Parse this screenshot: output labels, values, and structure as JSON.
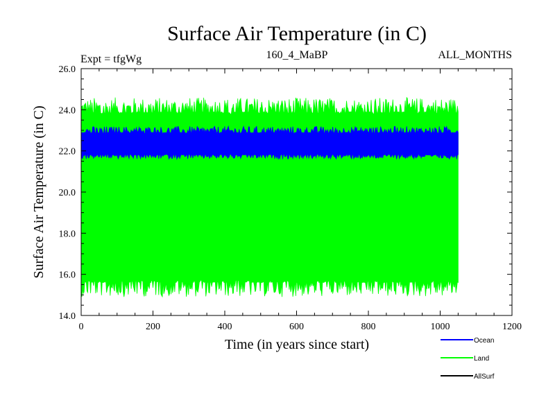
{
  "chart_data": {
    "type": "line",
    "title": "Surface Air Temperature (in C)",
    "experiment": "Expt = tfgWg",
    "subtitle": "160_4_MaBP",
    "months": "ALL_MONTHS",
    "xlabel": "Time (in years since start)",
    "ylabel": "Surface Air Temperature (in C)",
    "xlim": [
      0,
      1200
    ],
    "ylim": [
      14.0,
      26.0
    ],
    "x_ticks": [
      "0",
      "200",
      "400",
      "600",
      "800",
      "1000",
      "1200"
    ],
    "y_ticks": [
      "14.0",
      "16.0",
      "18.0",
      "20.0",
      "22.0",
      "24.0",
      "26.0"
    ],
    "x_end": 1050,
    "series": [
      {
        "name": "Land",
        "color": "#00ff00",
        "low_min": 14.9,
        "low_mean": 15.6,
        "high_mean": 23.9,
        "high_max": 24.6
      },
      {
        "name": "Ocean",
        "color": "#0000ff",
        "low_min": 21.6,
        "low_mean": 21.8,
        "high_mean": 22.9,
        "high_max": 23.2
      },
      {
        "name": "AllSurf",
        "color": "#000000"
      }
    ],
    "legend": [
      {
        "name": "Ocean",
        "color": "#0000ff"
      },
      {
        "name": "Land",
        "color": "#00ff00"
      },
      {
        "name": "AllSurf",
        "color": "#000000"
      }
    ]
  }
}
